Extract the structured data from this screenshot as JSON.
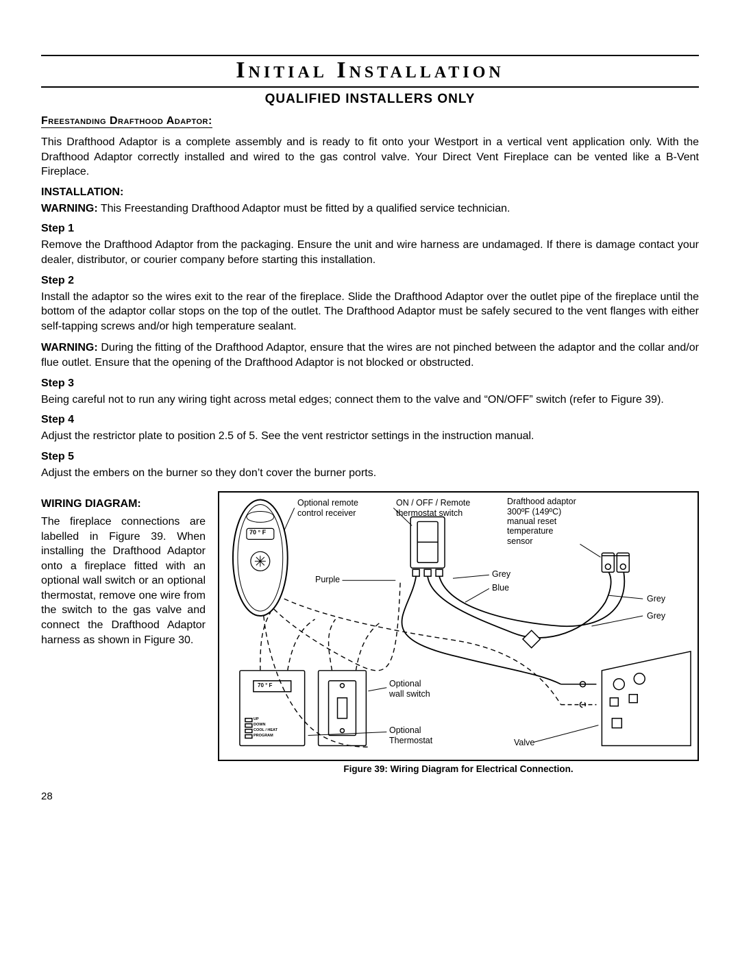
{
  "page": {
    "title": "Initial Installation",
    "subtitle": "QUALIFIED INSTALLERS ONLY",
    "pageNumber": "28"
  },
  "section1": {
    "heading": "Freestanding Drafthood Adaptor:",
    "text": "This Drafthood Adaptor is a complete assembly and is ready to fit onto your Westport in a vertical vent application only. With the Drafthood Adaptor correctly installed and wired to the gas control valve. Your Direct Vent Fireplace can be vented like a B-Vent Fireplace."
  },
  "install": {
    "heading": "INSTALLATION:",
    "warningLabel": "WARNING:",
    "warningText": "  This Freestanding Drafthood Adaptor must be fitted by a qualified service technician."
  },
  "steps": {
    "s1": {
      "h": "Step 1",
      "t": "Remove the Drafthood Adaptor from the packaging. Ensure the unit and wire harness are undamaged. If there is damage contact your dealer, distributor, or courier company before starting this installation."
    },
    "s2": {
      "h": "Step 2",
      "t": "Install the adaptor so the wires exit to the rear of the fireplace. Slide the Drafthood Adaptor over the outlet pipe of the fireplace until the bottom of the adaptor collar stops on the top of the outlet. The Drafthood Adaptor must be safely secured to the vent flanges with either self-tapping screws and/or high temperature sealant."
    },
    "s2warnLabel": "WARNING:",
    "s2warnText": " During the fitting of the Drafthood Adaptor, ensure that the wires are not pinched between the adaptor and the collar and/or flue outlet. Ensure that the opening of the Drafthood Adaptor is not blocked or obstructed.",
    "s3": {
      "h": "Step 3",
      "t": "Being careful not to run any wiring tight across metal edges; connect them to the valve and “ON/OFF” switch (refer to Figure 39)."
    },
    "s4": {
      "h": "Step 4",
      "t": "Adjust the restrictor plate to position 2.5 of 5. See the vent restrictor settings in the instruction manual."
    },
    "s5": {
      "h": "Step 5",
      "t": "Adjust the embers on the burner so they don’t cover the burner ports."
    }
  },
  "wiring": {
    "heading": "WIRING DIAGRAM:",
    "text": "The fireplace connections are labelled in Figure 39. When installing the Drafthood Adaptor onto a fireplace fitted with an optional wall switch or an optional thermostat, remove one wire from the switch to the gas valve and connect the Drafthood Adaptor harness as shown in Figure 30.",
    "caption": "Figure 39: Wiring Diagram for Electrical Connection."
  },
  "diagram": {
    "labels": {
      "optRemote": "Optional remote\ncontrol receiver",
      "onoff": "ON / OFF / Remote\nthermostat switch",
      "adaptor": "Drafthood adaptor\n300ºF (149ºC)\nmanual reset\ntemperature\nsensor",
      "purple": "Purple",
      "grey": "Grey",
      "blue": "Blue",
      "grey2": "Grey",
      "grey3": "Grey",
      "optWall": "Optional\nwall switch",
      "optTherm": "Optional\nThermostat",
      "valve": "Valve",
      "temp70": "70 ° F",
      "therm70": "70 ° F",
      "thermBtns": "UP\nDOWN\nCOOL / HEAT\nPROGRAM"
    },
    "style": {
      "border": "#000000",
      "bg": "#ffffff",
      "text": "#000000",
      "lineWidth": 1.5,
      "dashedLineWidth": 1.2
    }
  }
}
